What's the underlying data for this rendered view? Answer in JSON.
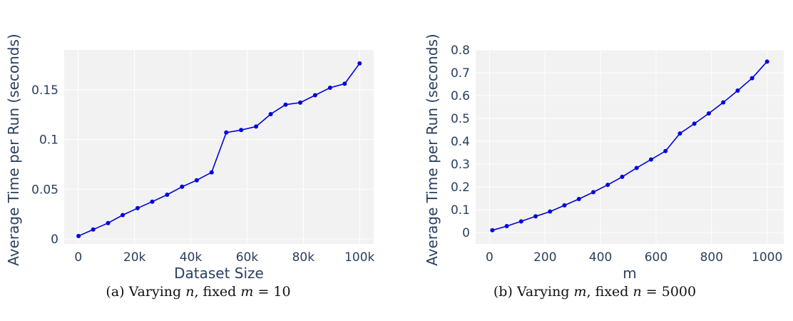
{
  "chart_data": [
    {
      "type": "line",
      "xlabel": "Dataset Size",
      "ylabel": "Average Time per Run (seconds)",
      "xlim": [
        -5000,
        105000
      ],
      "ylim": [
        -0.005,
        0.19
      ],
      "x_ticks": [
        0,
        20000,
        40000,
        60000,
        80000,
        100000
      ],
      "x_tick_labels": [
        "0",
        "20k",
        "40k",
        "60k",
        "80k",
        "100k"
      ],
      "y_ticks": [
        0,
        0.05,
        0.1,
        0.15
      ],
      "y_tick_labels": [
        "0",
        "0.05",
        "0.1",
        "0.15"
      ],
      "grid": true,
      "series": [
        {
          "color": "#0000e0",
          "x": [
            100,
            5300,
            10600,
            15800,
            21100,
            26300,
            31600,
            36900,
            42100,
            47400,
            52600,
            57900,
            63200,
            68400,
            73700,
            78900,
            84200,
            89500,
            94700,
            100000
          ],
          "y": [
            0.003,
            0.0095,
            0.016,
            0.024,
            0.031,
            0.0375,
            0.0445,
            0.0525,
            0.059,
            0.067,
            0.107,
            0.1095,
            0.113,
            0.1255,
            0.135,
            0.137,
            0.1445,
            0.152,
            0.156,
            0.1765
          ]
        }
      ],
      "caption": {
        "prefix": "(a) Varying ",
        "var1": "n",
        "middle": ", fixed ",
        "var2": "m",
        "suffix": " = 10"
      }
    },
    {
      "type": "line",
      "xlabel": "m",
      "ylabel": "Average Time per Run (seconds)",
      "xlim": [
        -50,
        1060
      ],
      "ylim": [
        -0.05,
        0.8
      ],
      "x_ticks": [
        0,
        200,
        400,
        600,
        800,
        1000
      ],
      "x_tick_labels": [
        "0",
        "200",
        "400",
        "600",
        "800",
        "1000"
      ],
      "y_ticks": [
        0,
        0.1,
        0.2,
        0.3,
        0.4,
        0.5,
        0.6,
        0.7,
        0.8
      ],
      "y_tick_labels": [
        "0",
        "0.1",
        "0.2",
        "0.3",
        "0.4",
        "0.5",
        "0.6",
        "0.7",
        "0.8"
      ],
      "grid": true,
      "series": [
        {
          "color": "#0000e0",
          "x": [
            10,
            62,
            114,
            166,
            218,
            270,
            322,
            374,
            426,
            478,
            530,
            582,
            634,
            686,
            738,
            790,
            842,
            894,
            946,
            1000
          ],
          "y": [
            0.01,
            0.028,
            0.049,
            0.071,
            0.092,
            0.119,
            0.147,
            0.177,
            0.209,
            0.244,
            0.283,
            0.32,
            0.357,
            0.434,
            0.477,
            0.522,
            0.57,
            0.622,
            0.676,
            0.749
          ]
        }
      ],
      "caption": {
        "prefix": "(b) Varying ",
        "var1": "m",
        "middle": ", fixed ",
        "var2": "n",
        "suffix": " = 5000"
      }
    }
  ]
}
